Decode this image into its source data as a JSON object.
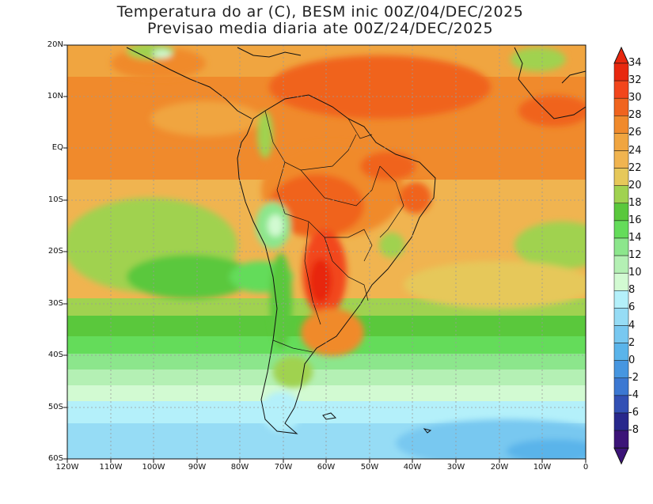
{
  "title": {
    "line1": "Temperatura do ar (C), BESM inic 00Z/04/DEC/2025",
    "line2": "Previsao media diaria ate 00Z/24/DEC/2025"
  },
  "axes": {
    "lat_labels": [
      "20N",
      "10N",
      "EQ",
      "10S",
      "20S",
      "30S",
      "40S",
      "50S",
      "60S"
    ],
    "lon_labels": [
      "120W",
      "110W",
      "100W",
      "90W",
      "80W",
      "70W",
      "60W",
      "50W",
      "40W",
      "30W",
      "20W",
      "10W",
      "0"
    ]
  },
  "colorbar": {
    "labels": [
      "34",
      "32",
      "30",
      "28",
      "26",
      "24",
      "22",
      "20",
      "18",
      "16",
      "14",
      "12",
      "10",
      "8",
      "6",
      "4",
      "2",
      "0",
      "-2",
      "-4",
      "-6",
      "-8"
    ],
    "colors": [
      "#e8280f",
      "#f2461c",
      "#f0641e",
      "#f08a2c",
      "#f0a540",
      "#f0b450",
      "#e6c85a",
      "#a0d250",
      "#5ac83c",
      "#64dc5a",
      "#8ce68c",
      "#b4f0b4",
      "#d2fad2",
      "#b4f0fa",
      "#96dcf5",
      "#78c8f0",
      "#5ab4ea",
      "#4696e0",
      "#3c78d2",
      "#3250b4",
      "#28288c",
      "#3c1478"
    ],
    "top_arrow_color": "#e8280f",
    "bottom_arrow_color": "#3c1478"
  }
}
